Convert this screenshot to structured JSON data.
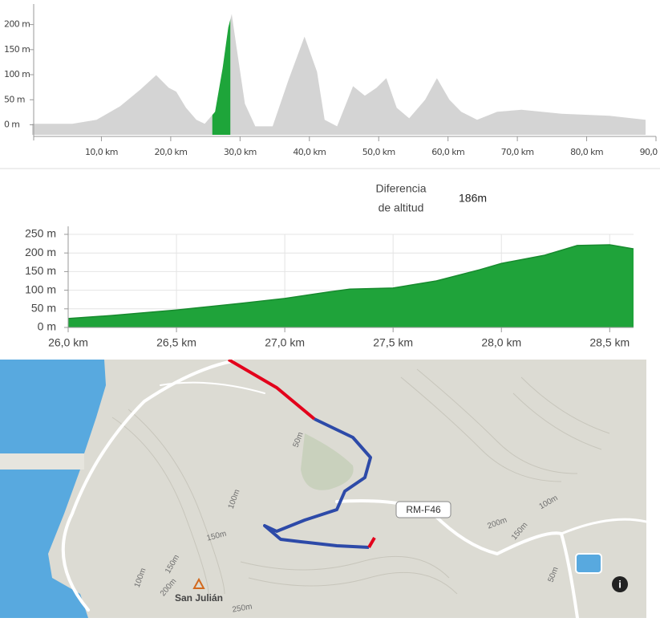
{
  "chart_data": [
    {
      "type": "area",
      "x": [
        0,
        5.8,
        9.3,
        12.7,
        15.6,
        17.9,
        19.7,
        20.8,
        22.2,
        23.7,
        24.9,
        26.4,
        27.5,
        28.3,
        28.8,
        29.5,
        30.7,
        32.2,
        34.7,
        37.0,
        39.3,
        41.1,
        42.2,
        44.0,
        46.3,
        48.0,
        49.7,
        51.1,
        52.6,
        54.4,
        56.7,
        58.4,
        60.2,
        61.9,
        64.2,
        67.1,
        70.6,
        76.4,
        83.3,
        88.5
      ],
      "values": [
        2,
        2,
        10,
        37,
        70,
        99,
        74,
        66,
        34,
        10,
        2,
        26,
        114,
        194,
        221,
        154,
        42,
        -3,
        -3,
        90,
        176,
        106,
        10,
        -3,
        77,
        58,
        74,
        93,
        34,
        13,
        50,
        93,
        50,
        26,
        10,
        26,
        30,
        22,
        18,
        10
      ],
      "color": "#d4d4d4",
      "highlight": {
        "range": [
          26.0,
          28.6
        ],
        "color": "#1ea53a"
      },
      "xlim": [
        0,
        90
      ],
      "ylim": [
        -20,
        225
      ],
      "xticks": [
        {
          "value": 10,
          "label": "10,0 km"
        },
        {
          "value": 20,
          "label": "20,0 km"
        },
        {
          "value": 30,
          "label": "30,0 km"
        },
        {
          "value": 40,
          "label": "40,0 km"
        },
        {
          "value": 50,
          "label": "50,0 km"
        },
        {
          "value": 60,
          "label": "60,0 km"
        },
        {
          "value": 70,
          "label": "70,0 km"
        },
        {
          "value": 80,
          "label": "80,0 km"
        },
        {
          "value": 90,
          "label": "90,0 km"
        }
      ],
      "yticks": [
        {
          "value": 0,
          "label": "0 m"
        },
        {
          "value": 50,
          "label": "50 m"
        },
        {
          "value": 100,
          "label": "100 m"
        },
        {
          "value": 150,
          "label": "150 m"
        },
        {
          "value": 200,
          "label": "200 m"
        }
      ],
      "grid": false
    },
    {
      "type": "area",
      "x": [
        26.0,
        26.2,
        26.5,
        26.8,
        27.0,
        27.2,
        27.3,
        27.5,
        27.7,
        27.9,
        28.0,
        28.2,
        28.35,
        28.5,
        28.61
      ],
      "values": [
        24,
        32,
        47,
        65,
        78,
        95,
        103,
        106,
        125,
        155,
        172,
        194,
        220,
        222,
        211
      ],
      "color": "#1fa33a",
      "xlim": [
        26.0,
        28.61
      ],
      "ylim": [
        0,
        250
      ],
      "xticks": [
        {
          "value": 26.0,
          "label": "26,0 km"
        },
        {
          "value": 26.5,
          "label": "26,5 km"
        },
        {
          "value": 27.0,
          "label": "27,0 km"
        },
        {
          "value": 27.5,
          "label": "27,5 km"
        },
        {
          "value": 28.0,
          "label": "28,0 km"
        },
        {
          "value": 28.5,
          "label": "28,5 km"
        }
      ],
      "yticks": [
        {
          "value": 0,
          "label": "0 m"
        },
        {
          "value": 50,
          "label": "50 m"
        },
        {
          "value": 100,
          "label": "100 m"
        },
        {
          "value": 150,
          "label": "150 m"
        },
        {
          "value": 200,
          "label": "200 m"
        },
        {
          "value": 250,
          "label": "250 m"
        }
      ],
      "grid": true
    }
  ],
  "stats": {
    "label": [
      "Diferencia",
      "de altitud"
    ],
    "value": "186m"
  },
  "map": {
    "road": "RM-F46",
    "place": "San Julián",
    "contours": [
      "50m",
      "100m",
      "150m",
      "100m",
      "150m",
      "200m",
      "200m",
      "150m",
      "100m",
      "50m",
      "250m"
    ]
  }
}
